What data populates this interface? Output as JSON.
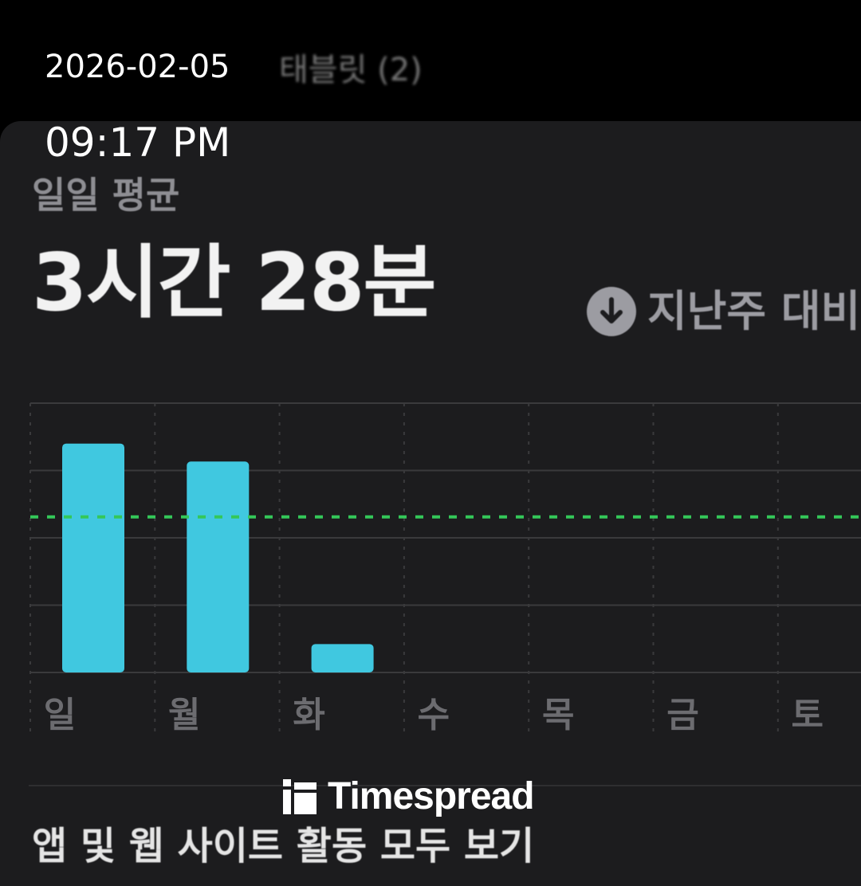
{
  "overlay": {
    "date": "2026-02-05",
    "time": "09:17 PM"
  },
  "header": {
    "faded_section_label": "태블릿 (2)"
  },
  "summary": {
    "label": "일일 평균",
    "value": "3시간 28분",
    "comparison_text": "지난주 대비",
    "comparison_icon": "arrow-down-circle-icon"
  },
  "chart_data": {
    "type": "bar",
    "categories": [
      "일",
      "월",
      "화",
      "수",
      "목",
      "금",
      "토"
    ],
    "values": [
      306,
      282,
      38,
      null,
      null,
      null,
      null
    ],
    "unit": "minutes (estimated)",
    "ylim": [
      0,
      360
    ],
    "gridlines": [
      0,
      90,
      180,
      270,
      360
    ],
    "average_line": 208,
    "grid": true,
    "colors": {
      "bar": "#40c8e0",
      "average": "#34c759",
      "grid": "#3a3a3c"
    }
  },
  "footer": {
    "link_text": "앱 및 웹 사이트 활동 모두 보기"
  },
  "watermark": {
    "text": "Timespread"
  }
}
